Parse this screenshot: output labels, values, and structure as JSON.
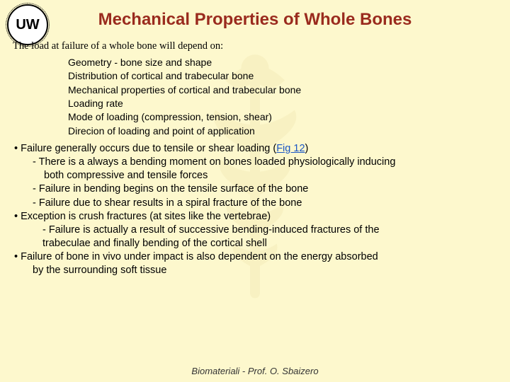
{
  "colors": {
    "background": "#fdf8cd",
    "title": "#9a2b1e",
    "body_text": "#000000",
    "link": "#1a56c4",
    "watermark": "#c7a84a"
  },
  "logo_text": "UW",
  "title": "Mechanical Properties of Whole Bones",
  "intro": "The load at failure of a whole bone will depend on:",
  "factors": [
    "Geometry - bone size and shape",
    " Distribution of cortical and trabecular bone",
    "Mechanical properties of cortical and trabecular bone",
    "Loading rate",
    "Mode of loading (compression, tension, shear)",
    "Direcion of loading and point of application"
  ],
  "bullets": [
    {
      "lvl": "b1",
      "pre": "• Failure generally occurs due to tensile or shear loading (",
      "link": "Fig 12",
      "post": ")"
    },
    {
      "lvl": "b2",
      "text": "- There is a always a bending moment on bones loaded physiologically inducing"
    },
    {
      "lvl": "b3",
      "text": "both compressive and tensile forces"
    },
    {
      "lvl": "b2",
      "text": "-  Failure in bending begins on the tensile surface of the bone"
    },
    {
      "lvl": "b2",
      "text": "- Failure due to shear results in a spiral fracture of the bone"
    },
    {
      "lvl": "b1",
      "text": "• Exception is crush fractures (at sites like the vertebrae)"
    },
    {
      "lvl": "b2b",
      "text": "-  Failure is actually a result of successive bending-induced fractures of the"
    },
    {
      "lvl": "b2b",
      "text": "trabeculae and finally bending of the cortical shell"
    },
    {
      "lvl": "b1",
      "text": "•  Failure of bone in vivo under impact is also dependent on the energy absorbed"
    },
    {
      "lvl": "b2",
      "text": "by the surrounding soft tissue"
    }
  ],
  "footer": "Biomateriali - Prof. O. Sbaizero"
}
